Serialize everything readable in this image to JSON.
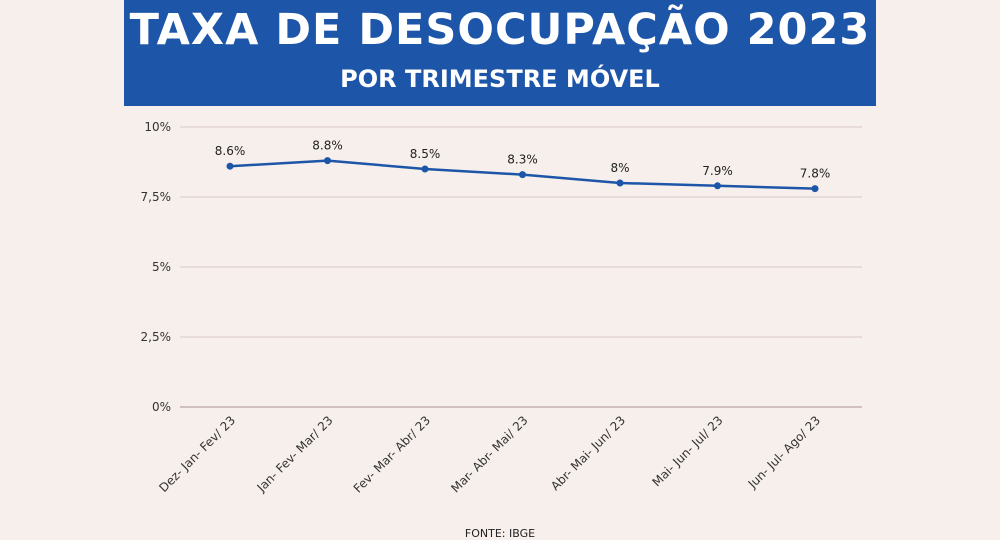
{
  "header": {
    "title": "TAXA DE DESOCUPAÇÃO 2023",
    "subtitle": "POR TRIMESTRE MÓVEL",
    "background_color": "#1d56a8"
  },
  "source": "FONTE: IBGE",
  "chart_data": {
    "type": "line",
    "title": "TAXA DE DESOCUPAÇÃO 2023",
    "subtitle": "POR TRIMESTRE MÓVEL",
    "xlabel": "",
    "ylabel": "",
    "categories": [
      "Dez- Jan- Fev/ 23",
      "Jan- Fev- Mar/ 23",
      "Fev- Mar- Abr/ 23",
      "Mar- Abr- Mai/ 23",
      "Abr- Mai- Jun/ 23",
      "Mai- Jun- Jul/ 23",
      "Jun- Jul- Ago/ 23"
    ],
    "series": [
      {
        "values": [
          8.6,
          8.8,
          8.5,
          8.3,
          8.0,
          7.9,
          7.8
        ],
        "labels": [
          "8.6%",
          "8.8%",
          "8.5%",
          "8.3%",
          "8%",
          "7.9%",
          "7.8%"
        ],
        "color": "#1d56a8"
      }
    ],
    "ylim": [
      0,
      10
    ],
    "yticks": [
      0,
      2.5,
      5,
      7.5,
      10
    ],
    "ytick_labels": [
      "0%",
      "2,5%",
      "5%",
      "7,5%",
      "10%"
    ],
    "grid": true,
    "legend": "none"
  }
}
